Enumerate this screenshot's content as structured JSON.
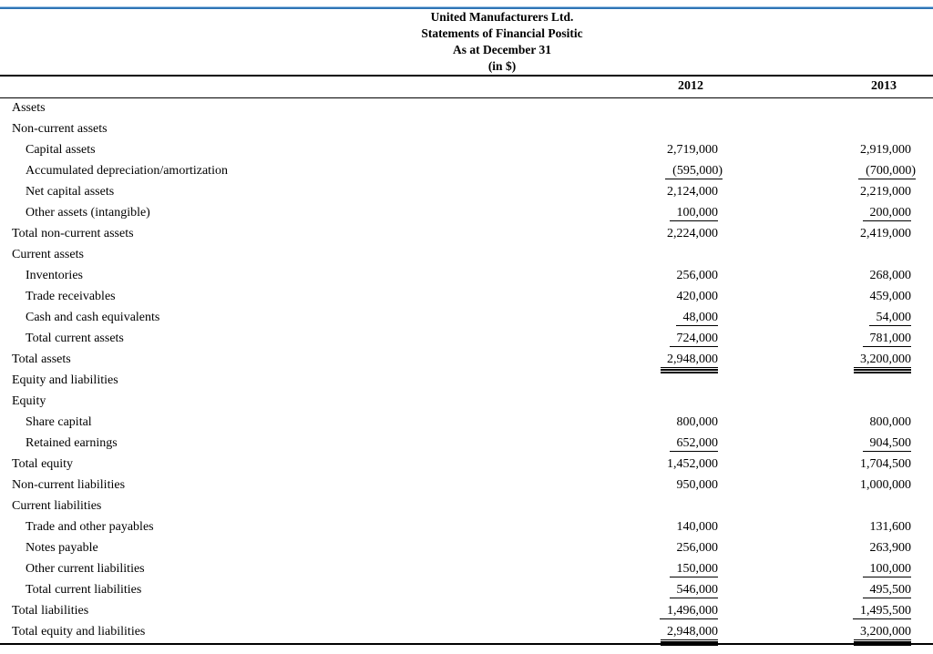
{
  "title": {
    "company": "United Manufacturers Ltd.",
    "statement": "Statements of Financial Positic",
    "as_at": "As at December 31",
    "units": "(in $)"
  },
  "columns": {
    "year1": "2012",
    "year2": "2013"
  },
  "accent_colors": {
    "top_rule_light": "#9fc5e8",
    "top_rule_dark": "#2e74b5",
    "rule_black": "#000000"
  },
  "rows": [
    {
      "label": "Assets",
      "indent": 0,
      "v2012": "",
      "v2013": "",
      "underline": "none"
    },
    {
      "label": "Non-current assets",
      "indent": 0,
      "v2012": "",
      "v2013": "",
      "underline": "none"
    },
    {
      "label": "Capital assets",
      "indent": 1,
      "v2012": "2,719,000",
      "v2013": "2,919,000",
      "underline": "none"
    },
    {
      "label": "Accumulated depreciation/amortization",
      "indent": 1,
      "v2012": "(595,000)",
      "v2013": "(700,000)",
      "underline": "single"
    },
    {
      "label": "Net capital assets",
      "indent": 1,
      "v2012": "2,124,000",
      "v2013": "2,219,000",
      "underline": "none"
    },
    {
      "label": "Other assets (intangible)",
      "indent": 1,
      "v2012": "100,000",
      "v2013": "200,000",
      "underline": "single"
    },
    {
      "label": "Total non-current assets",
      "indent": 0,
      "v2012": "2,224,000",
      "v2013": "2,419,000",
      "underline": "none"
    },
    {
      "label": "Current assets",
      "indent": 0,
      "v2012": "",
      "v2013": "",
      "underline": "none"
    },
    {
      "label": "Inventories",
      "indent": 1,
      "v2012": "256,000",
      "v2013": "268,000",
      "underline": "none"
    },
    {
      "label": "Trade receivables",
      "indent": 1,
      "v2012": "420,000",
      "v2013": "459,000",
      "underline": "none"
    },
    {
      "label": "Cash and cash equivalents",
      "indent": 1,
      "v2012": "48,000",
      "v2013": "54,000",
      "underline": "single"
    },
    {
      "label": "Total current assets",
      "indent": 1,
      "v2012": "724,000",
      "v2013": "781,000",
      "underline": "single"
    },
    {
      "label": "Total assets",
      "indent": 0,
      "v2012": "2,948,000",
      "v2013": "3,200,000",
      "underline": "double"
    },
    {
      "label": "Equity and liabilities",
      "indent": 0,
      "v2012": "",
      "v2013": "",
      "underline": "none"
    },
    {
      "label": "Equity",
      "indent": 0,
      "v2012": "",
      "v2013": "",
      "underline": "none"
    },
    {
      "label": "Share capital",
      "indent": 1,
      "v2012": "800,000",
      "v2013": "800,000",
      "underline": "none"
    },
    {
      "label": "Retained earnings",
      "indent": 1,
      "v2012": "652,000",
      "v2013": "904,500",
      "underline": "single"
    },
    {
      "label": "Total equity",
      "indent": 0,
      "v2012": "1,452,000",
      "v2013": "1,704,500",
      "underline": "none"
    },
    {
      "label": "Non-current liabilities",
      "indent": 0,
      "v2012": "950,000",
      "v2013": "1,000,000",
      "underline": "none"
    },
    {
      "label": "Current liabilities",
      "indent": 0,
      "v2012": "",
      "v2013": "",
      "underline": "none"
    },
    {
      "label": "Trade and other payables",
      "indent": 1,
      "v2012": "140,000",
      "v2013": "131,600",
      "underline": "none"
    },
    {
      "label": "Notes payable",
      "indent": 1,
      "v2012": "256,000",
      "v2013": "263,900",
      "underline": "none"
    },
    {
      "label": "Other current liabilities",
      "indent": 1,
      "v2012": "150,000",
      "v2013": "100,000",
      "underline": "single"
    },
    {
      "label": "Total current liabilities",
      "indent": 1,
      "v2012": "546,000",
      "v2013": "495,500",
      "underline": "single"
    },
    {
      "label": "Total liabilities",
      "indent": 0,
      "v2012": "1,496,000",
      "v2013": "1,495,500",
      "underline": "single"
    },
    {
      "label": "Total equity and liabilities",
      "indent": 0,
      "v2012": "2,948,000",
      "v2013": "3,200,000",
      "underline": "double"
    }
  ]
}
